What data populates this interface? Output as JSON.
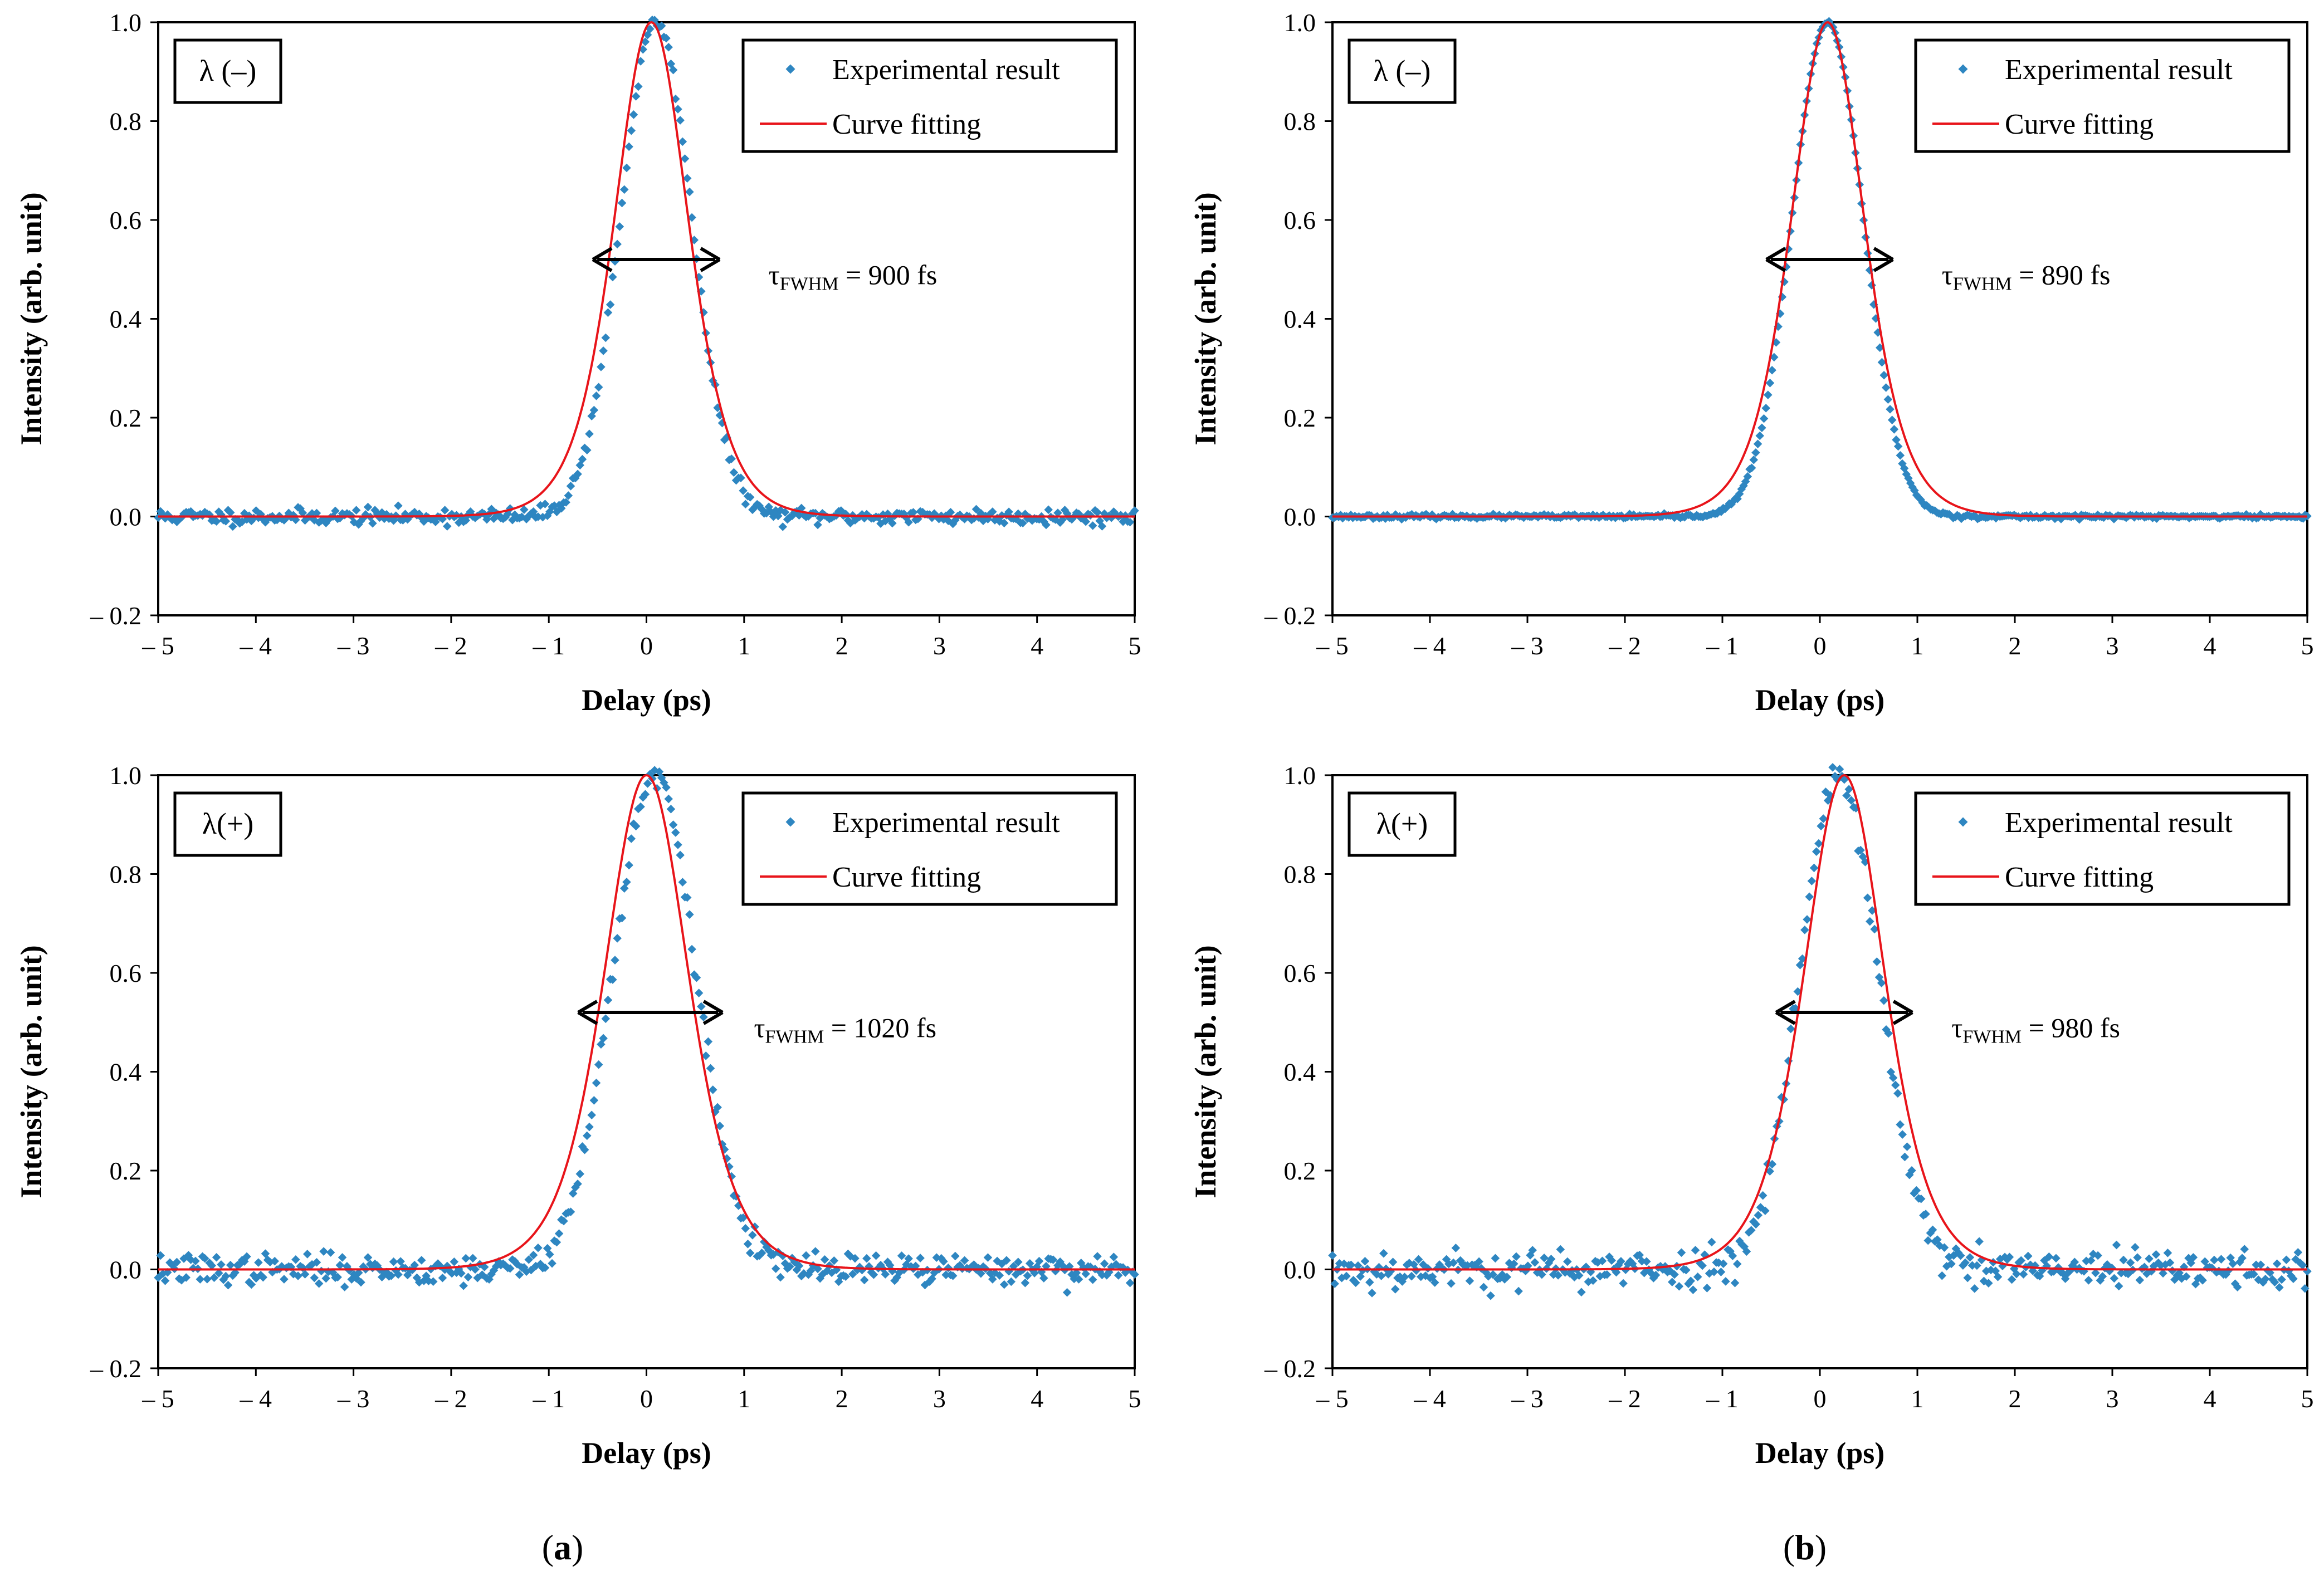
{
  "colors": {
    "experimental": "#2e86c1",
    "fit": "#e8141a",
    "axis": "#000000"
  },
  "panel_labels": [
    {
      "open": "(",
      "letter": "a",
      "close": ")"
    },
    {
      "open": "(",
      "letter": "b",
      "close": ")"
    }
  ],
  "chart_data": [
    {
      "type": "scatter",
      "title": "",
      "tag": "λ (–)",
      "xlabel": "Delay (ps)",
      "ylabel": "Intensity (arb. unit)",
      "xlim": [
        -5,
        5
      ],
      "ylim": [
        -0.2,
        1.0
      ],
      "xticks": [
        -5,
        -4,
        -3,
        -2,
        -1,
        0,
        1,
        2,
        3,
        4,
        5
      ],
      "xtick_labels": [
        "– 5",
        "– 4",
        "– 3",
        "– 2",
        "– 1",
        "0",
        "1",
        "2",
        "3",
        "4",
        "5"
      ],
      "yticks": [
        -0.2,
        0,
        0.2,
        0.4,
        0.6,
        0.8,
        1.0
      ],
      "ytick_labels": [
        "– 0.2",
        "0.0",
        "0.2",
        "0.4",
        "0.6",
        "0.8",
        "1.0"
      ],
      "legend": {
        "position": "top-right",
        "entries": [
          "Experimental result",
          "Curve fitting"
        ]
      },
      "annotation": {
        "tau": "τ",
        "sub": "FWHM",
        "text": " = 900  fs",
        "arrow_from": -0.55,
        "arrow_to": 0.75,
        "arrow_y": 0.52,
        "text_x": 1.25,
        "text_y": 0.47
      },
      "series": [
        {
          "name": "Experimental result",
          "kind": "scatter",
          "center": 0.1,
          "fwhm": 0.86,
          "shape": "gauss",
          "noise": 0.008,
          "n": 420,
          "seed": 11
        },
        {
          "name": "Curve fitting",
          "kind": "line",
          "center": 0.05,
          "fwhm": 0.9,
          "shape": "sech2"
        }
      ]
    },
    {
      "type": "scatter",
      "title": "",
      "tag": "λ (–)",
      "xlabel": "Delay (ps)",
      "ylabel": "Intensity (arb. unit)",
      "xlim": [
        -5,
        5
      ],
      "ylim": [
        -0.2,
        1.0
      ],
      "xticks": [
        -5,
        -4,
        -3,
        -2,
        -1,
        0,
        1,
        2,
        3,
        4,
        5
      ],
      "xtick_labels": [
        "– 5",
        "– 4",
        "– 3",
        "– 2",
        "– 1",
        "0",
        "1",
        "2",
        "3",
        "4",
        "5"
      ],
      "yticks": [
        -0.2,
        0,
        0.2,
        0.4,
        0.6,
        0.8,
        1.0
      ],
      "ytick_labels": [
        "– 0.2",
        "0.0",
        "0.2",
        "0.4",
        "0.6",
        "0.8",
        "1.0"
      ],
      "legend": {
        "position": "top-right",
        "entries": [
          "Experimental result",
          "Curve fitting"
        ]
      },
      "annotation": {
        "tau": "τ",
        "sub": "FWHM",
        "text": " = 890  fs",
        "arrow_from": -0.55,
        "arrow_to": 0.75,
        "arrow_y": 0.52,
        "text_x": 1.25,
        "text_y": 0.47
      },
      "series": [
        {
          "name": "Experimental result",
          "kind": "scatter",
          "center": 0.08,
          "fwhm": 0.86,
          "shape": "gauss",
          "noise": 0.002,
          "n": 480,
          "seed": 23
        },
        {
          "name": "Curve fitting",
          "kind": "line",
          "center": 0.08,
          "fwhm": 0.89,
          "shape": "sech2"
        }
      ]
    },
    {
      "type": "scatter",
      "title": "",
      "tag": "λ(+)",
      "xlabel": "Delay (ps)",
      "ylabel": "Intensity (arb. unit)",
      "xlim": [
        -5,
        5
      ],
      "ylim": [
        -0.2,
        1.0
      ],
      "xticks": [
        -5,
        -4,
        -3,
        -2,
        -1,
        0,
        1,
        2,
        3,
        4,
        5
      ],
      "xtick_labels": [
        "– 5",
        "– 4",
        "– 3",
        "– 2",
        "– 1",
        "0",
        "1",
        "2",
        "3",
        "4",
        "5"
      ],
      "yticks": [
        -0.2,
        0,
        0.2,
        0.4,
        0.6,
        0.8,
        1.0
      ],
      "ytick_labels": [
        "– 0.2",
        "0.0",
        "0.2",
        "0.4",
        "0.6",
        "0.8",
        "1.0"
      ],
      "legend": {
        "position": "top-right",
        "entries": [
          "Experimental result",
          "Curve fitting"
        ]
      },
      "annotation": {
        "tau": "τ",
        "sub": "FWHM",
        "text": " = 1020  fs",
        "arrow_from": -0.7,
        "arrow_to": 0.78,
        "arrow_y": 0.52,
        "text_x": 1.1,
        "text_y": 0.47
      },
      "series": [
        {
          "name": "Experimental result",
          "kind": "scatter",
          "center": 0.08,
          "fwhm": 1.0,
          "shape": "gauss",
          "noise": 0.015,
          "n": 420,
          "seed": 37
        },
        {
          "name": "Curve fitting",
          "kind": "line",
          "center": 0.0,
          "fwhm": 1.02,
          "shape": "sech2"
        }
      ]
    },
    {
      "type": "scatter",
      "title": "",
      "tag": "λ(+)",
      "xlabel": "Delay (ps)",
      "ylabel": "Intensity (arb. unit)",
      "xlim": [
        -5,
        5
      ],
      "ylim": [
        -0.2,
        1.0
      ],
      "xticks": [
        -5,
        -4,
        -3,
        -2,
        -1,
        0,
        1,
        2,
        3,
        4,
        5
      ],
      "xtick_labels": [
        "– 5",
        "– 4",
        "– 3",
        "– 2",
        "– 1",
        "0",
        "1",
        "2",
        "3",
        "4",
        "5"
      ],
      "yticks": [
        -0.2,
        0,
        0.2,
        0.4,
        0.6,
        0.8,
        1.0
      ],
      "ytick_labels": [
        "– 0.2",
        "0.0",
        "0.2",
        "0.4",
        "0.6",
        "0.8",
        "1.0"
      ],
      "legend": {
        "position": "top-right",
        "entries": [
          "Experimental result",
          "Curve fitting"
        ]
      },
      "annotation": {
        "tau": "τ",
        "sub": "FWHM",
        "text": " = 980  fs",
        "arrow_from": -0.45,
        "arrow_to": 0.95,
        "arrow_y": 0.52,
        "text_x": 1.35,
        "text_y": 0.47
      },
      "series": [
        {
          "name": "Experimental result",
          "kind": "scatter",
          "center": 0.2,
          "fwhm": 0.95,
          "shape": "gauss",
          "noise": 0.02,
          "n": 420,
          "seed": 53
        },
        {
          "name": "Curve fitting",
          "kind": "line",
          "center": 0.25,
          "fwhm": 0.98,
          "shape": "sech2"
        }
      ]
    }
  ]
}
